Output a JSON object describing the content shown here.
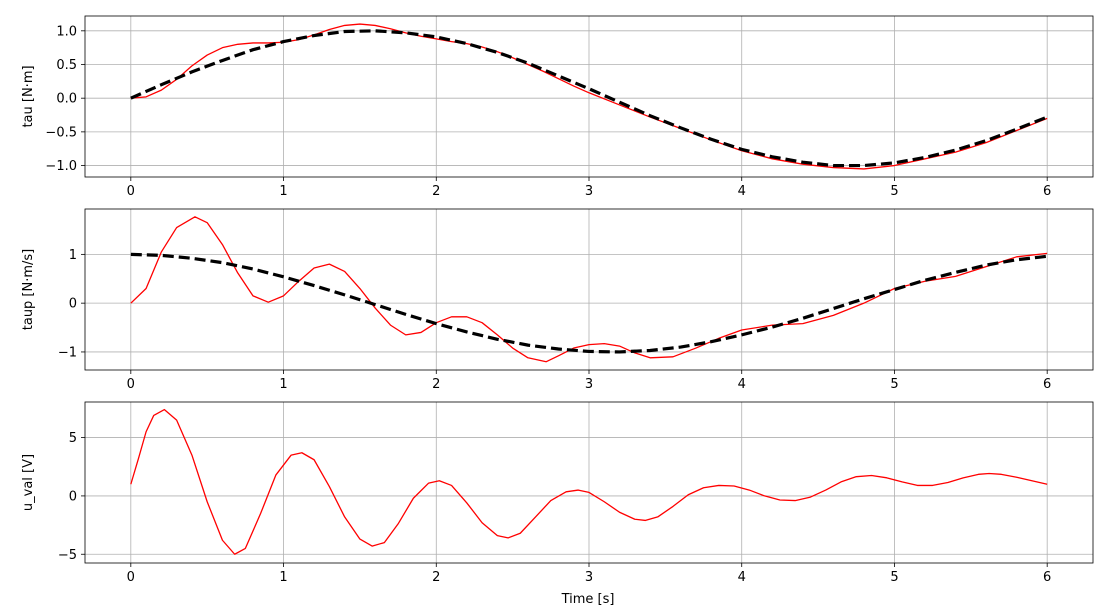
{
  "chart_data": [
    {
      "type": "line",
      "ylabel": "tau [N·m]",
      "xlabel": "",
      "xlim": [
        -0.3,
        6.3
      ],
      "ylim": [
        -1.17,
        1.22
      ],
      "xticks": [
        0,
        1,
        2,
        3,
        4,
        5,
        6
      ],
      "yticks": [
        -1.0,
        -0.5,
        0.0,
        0.5,
        1.0
      ],
      "ytick_labels": [
        "−1.0",
        "−0.5",
        "0.0",
        "0.5",
        "1.0"
      ],
      "grid": true,
      "series": [
        {
          "color": "#ff0000",
          "style": "solid",
          "x": [
            0,
            0.1,
            0.2,
            0.3,
            0.4,
            0.5,
            0.6,
            0.7,
            0.8,
            0.9,
            1.0,
            1.1,
            1.2,
            1.3,
            1.4,
            1.5,
            1.6,
            1.7,
            1.8,
            1.9,
            2.0,
            2.1,
            2.2,
            2.3,
            2.4,
            2.5,
            2.6,
            2.7,
            2.8,
            2.9,
            3.0,
            3.2,
            3.4,
            3.6,
            3.8,
            4.0,
            4.2,
            4.4,
            4.6,
            4.8,
            5.0,
            5.2,
            5.4,
            5.6,
            5.8,
            6.0
          ],
          "y": [
            0.0,
            0.02,
            0.12,
            0.28,
            0.48,
            0.64,
            0.75,
            0.8,
            0.82,
            0.82,
            0.83,
            0.87,
            0.94,
            1.02,
            1.08,
            1.1,
            1.08,
            1.03,
            0.97,
            0.92,
            0.88,
            0.84,
            0.81,
            0.76,
            0.69,
            0.6,
            0.5,
            0.4,
            0.29,
            0.18,
            0.08,
            -0.1,
            -0.28,
            -0.45,
            -0.62,
            -0.78,
            -0.9,
            -0.98,
            -1.03,
            -1.05,
            -1.0,
            -0.9,
            -0.8,
            -0.66,
            -0.48,
            -0.3
          ]
        },
        {
          "color": "#000000",
          "style": "dashed",
          "x": [
            0,
            0.2,
            0.4,
            0.6,
            0.8,
            1.0,
            1.2,
            1.4,
            1.6,
            1.8,
            2.0,
            2.2,
            2.4,
            2.6,
            2.8,
            3.0,
            3.2,
            3.4,
            3.6,
            3.8,
            4.0,
            4.2,
            4.4,
            4.6,
            4.8,
            5.0,
            5.2,
            5.4,
            5.6,
            5.8,
            6.0
          ],
          "y": [
            0.0,
            0.2,
            0.39,
            0.56,
            0.72,
            0.84,
            0.93,
            0.99,
            1.0,
            0.97,
            0.91,
            0.81,
            0.68,
            0.52,
            0.33,
            0.14,
            -0.06,
            -0.26,
            -0.44,
            -0.61,
            -0.76,
            -0.87,
            -0.95,
            -1.0,
            -1.0,
            -0.96,
            -0.88,
            -0.77,
            -0.63,
            -0.46,
            -0.28
          ]
        }
      ]
    },
    {
      "type": "line",
      "ylabel": "taup [N·m/s]",
      "xlabel": "",
      "xlim": [
        -0.3,
        6.3
      ],
      "ylim": [
        -1.37,
        1.93
      ],
      "xticks": [
        0,
        1,
        2,
        3,
        4,
        5,
        6
      ],
      "yticks": [
        -1,
        0,
        1
      ],
      "ytick_labels": [
        "−1",
        "0",
        "1"
      ],
      "grid": true,
      "series": [
        {
          "color": "#ff0000",
          "style": "solid",
          "x": [
            0,
            0.1,
            0.2,
            0.3,
            0.42,
            0.5,
            0.6,
            0.7,
            0.8,
            0.9,
            1.0,
            1.1,
            1.2,
            1.3,
            1.4,
            1.5,
            1.6,
            1.7,
            1.8,
            1.9,
            2.0,
            2.1,
            2.2,
            2.3,
            2.4,
            2.5,
            2.6,
            2.72,
            2.8,
            2.9,
            3.0,
            3.1,
            3.2,
            3.3,
            3.4,
            3.55,
            3.7,
            3.85,
            4.0,
            4.2,
            4.4,
            4.6,
            4.8,
            5.0,
            5.2,
            5.4,
            5.6,
            5.8,
            6.0
          ],
          "y": [
            0.0,
            0.3,
            1.05,
            1.55,
            1.77,
            1.65,
            1.2,
            0.62,
            0.15,
            0.02,
            0.15,
            0.45,
            0.72,
            0.8,
            0.65,
            0.3,
            -0.1,
            -0.45,
            -0.65,
            -0.6,
            -0.4,
            -0.28,
            -0.28,
            -0.4,
            -0.65,
            -0.92,
            -1.12,
            -1.2,
            -1.08,
            -0.92,
            -0.85,
            -0.83,
            -0.88,
            -1.02,
            -1.12,
            -1.1,
            -0.92,
            -0.72,
            -0.55,
            -0.45,
            -0.42,
            -0.25,
            0.0,
            0.3,
            0.45,
            0.55,
            0.75,
            0.95,
            1.02
          ]
        },
        {
          "color": "#000000",
          "style": "dashed",
          "x": [
            0,
            0.2,
            0.4,
            0.6,
            0.8,
            1.0,
            1.2,
            1.4,
            1.6,
            1.8,
            2.0,
            2.2,
            2.4,
            2.6,
            2.8,
            3.0,
            3.2,
            3.4,
            3.6,
            3.8,
            4.0,
            4.2,
            4.4,
            4.6,
            4.8,
            5.0,
            5.2,
            5.4,
            5.6,
            5.8,
            6.0
          ],
          "y": [
            1.0,
            0.98,
            0.92,
            0.83,
            0.7,
            0.54,
            0.36,
            0.17,
            -0.03,
            -0.23,
            -0.42,
            -0.59,
            -0.74,
            -0.86,
            -0.94,
            -0.99,
            -1.0,
            -0.97,
            -0.9,
            -0.79,
            -0.65,
            -0.49,
            -0.31,
            -0.11,
            0.09,
            0.28,
            0.47,
            0.63,
            0.78,
            0.89,
            0.96
          ]
        }
      ]
    },
    {
      "type": "line",
      "ylabel": "u_val [V]",
      "xlabel": "Time [s]",
      "xlim": [
        -0.3,
        6.3
      ],
      "ylim": [
        -5.75,
        8.05
      ],
      "xticks": [
        0,
        1,
        2,
        3,
        4,
        5,
        6
      ],
      "yticks": [
        -5,
        0,
        5
      ],
      "ytick_labels": [
        "−5",
        "0",
        "5"
      ],
      "grid": true,
      "series": [
        {
          "color": "#ff0000",
          "style": "solid",
          "x": [
            0,
            0.05,
            0.1,
            0.15,
            0.22,
            0.3,
            0.4,
            0.5,
            0.6,
            0.68,
            0.75,
            0.85,
            0.95,
            1.05,
            1.12,
            1.2,
            1.3,
            1.4,
            1.5,
            1.58,
            1.66,
            1.75,
            1.85,
            1.95,
            2.02,
            2.1,
            2.2,
            2.3,
            2.4,
            2.47,
            2.55,
            2.65,
            2.75,
            2.85,
            2.93,
            3.0,
            3.1,
            3.2,
            3.3,
            3.37,
            3.45,
            3.55,
            3.65,
            3.75,
            3.85,
            3.95,
            4.05,
            4.15,
            4.25,
            4.35,
            4.45,
            4.55,
            4.65,
            4.75,
            4.85,
            4.95,
            5.05,
            5.15,
            5.25,
            5.35,
            5.45,
            5.55,
            5.62,
            5.7,
            5.8,
            5.9,
            6.0
          ],
          "y": [
            1.0,
            3.2,
            5.5,
            6.9,
            7.4,
            6.5,
            3.5,
            -0.5,
            -3.8,
            -5.0,
            -4.5,
            -1.5,
            1.8,
            3.5,
            3.7,
            3.1,
            0.8,
            -1.8,
            -3.7,
            -4.3,
            -4.0,
            -2.4,
            -0.2,
            1.1,
            1.3,
            0.9,
            -0.6,
            -2.3,
            -3.4,
            -3.6,
            -3.2,
            -1.8,
            -0.4,
            0.35,
            0.5,
            0.3,
            -0.5,
            -1.4,
            -2.0,
            -2.1,
            -1.8,
            -0.9,
            0.1,
            0.7,
            0.9,
            0.85,
            0.5,
            0.0,
            -0.35,
            -0.4,
            -0.1,
            0.5,
            1.2,
            1.65,
            1.75,
            1.55,
            1.2,
            0.9,
            0.9,
            1.15,
            1.55,
            1.85,
            1.92,
            1.85,
            1.6,
            1.3,
            1.0
          ]
        }
      ]
    }
  ]
}
